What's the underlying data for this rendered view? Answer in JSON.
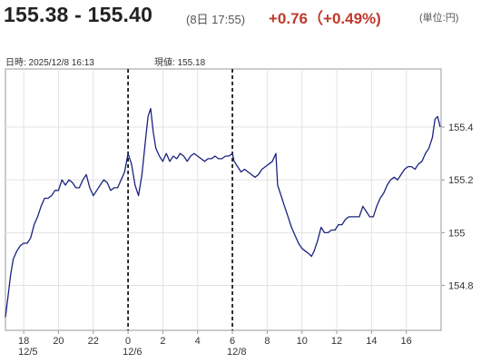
{
  "header": {
    "price_range": "155.38 - 155.40",
    "timestamp": "(8日 17:55)",
    "change": "+0.76（+0.49%)",
    "unit": "(単位:円)",
    "change_color": "#c0392b"
  },
  "info_bar": {
    "datetime_label": "日時: 2025/12/8  16:13",
    "current_label": "現値: 155.18"
  },
  "chart_data": {
    "type": "line",
    "x_unit": "hour",
    "x_range": [
      16.95,
      42.0
    ],
    "ylim": [
      154.63,
      155.62
    ],
    "y_ticks": [
      154.8,
      155,
      155.2,
      155.4
    ],
    "y_tick_labels": [
      "154.8",
      "155",
      "155.2",
      "155.4"
    ],
    "x_ticks": [
      {
        "x": 18,
        "label": "18",
        "date": "12/5"
      },
      {
        "x": 20,
        "label": "20"
      },
      {
        "x": 22,
        "label": "22"
      },
      {
        "x": 24,
        "label": "0",
        "date": "12/6"
      },
      {
        "x": 26,
        "label": "2"
      },
      {
        "x": 28,
        "label": "4"
      },
      {
        "x": 30,
        "label": "6",
        "date": "12/8"
      },
      {
        "x": 32,
        "label": "8"
      },
      {
        "x": 34,
        "label": "10"
      },
      {
        "x": 36,
        "label": "12"
      },
      {
        "x": 38,
        "label": "14"
      },
      {
        "x": 40,
        "label": "16"
      }
    ],
    "separators": [
      24,
      30
    ],
    "grid": true,
    "line_color": "#1a237e",
    "points": [
      [
        16.95,
        154.68
      ],
      [
        17.1,
        154.76
      ],
      [
        17.25,
        154.84
      ],
      [
        17.4,
        154.9
      ],
      [
        17.6,
        154.93
      ],
      [
        17.8,
        154.95
      ],
      [
        18.0,
        154.96
      ],
      [
        18.2,
        154.96
      ],
      [
        18.4,
        154.98
      ],
      [
        18.6,
        155.03
      ],
      [
        18.8,
        155.06
      ],
      [
        19.0,
        155.1
      ],
      [
        19.2,
        155.13
      ],
      [
        19.4,
        155.13
      ],
      [
        19.6,
        155.14
      ],
      [
        19.8,
        155.16
      ],
      [
        20.0,
        155.16
      ],
      [
        20.2,
        155.2
      ],
      [
        20.4,
        155.18
      ],
      [
        20.6,
        155.2
      ],
      [
        20.8,
        155.19
      ],
      [
        21.0,
        155.17
      ],
      [
        21.2,
        155.17
      ],
      [
        21.4,
        155.2
      ],
      [
        21.6,
        155.22
      ],
      [
        21.8,
        155.17
      ],
      [
        22.0,
        155.14
      ],
      [
        22.2,
        155.16
      ],
      [
        22.4,
        155.18
      ],
      [
        22.6,
        155.2
      ],
      [
        22.8,
        155.19
      ],
      [
        23.0,
        155.16
      ],
      [
        23.2,
        155.17
      ],
      [
        23.4,
        155.17
      ],
      [
        23.6,
        155.2
      ],
      [
        23.8,
        155.23
      ],
      [
        24.0,
        155.3
      ],
      [
        24.2,
        155.26
      ],
      [
        24.4,
        155.18
      ],
      [
        24.6,
        155.14
      ],
      [
        24.8,
        155.22
      ],
      [
        25.0,
        155.35
      ],
      [
        25.15,
        155.44
      ],
      [
        25.3,
        155.47
      ],
      [
        25.45,
        155.38
      ],
      [
        25.6,
        155.32
      ],
      [
        25.8,
        155.29
      ],
      [
        26.0,
        155.27
      ],
      [
        26.2,
        155.3
      ],
      [
        26.4,
        155.27
      ],
      [
        26.6,
        155.29
      ],
      [
        26.8,
        155.28
      ],
      [
        27.0,
        155.3
      ],
      [
        27.2,
        155.29
      ],
      [
        27.4,
        155.27
      ],
      [
        27.6,
        155.29
      ],
      [
        27.8,
        155.3
      ],
      [
        28.0,
        155.29
      ],
      [
        28.2,
        155.28
      ],
      [
        28.4,
        155.27
      ],
      [
        28.6,
        155.28
      ],
      [
        28.8,
        155.28
      ],
      [
        29.0,
        155.29
      ],
      [
        29.2,
        155.28
      ],
      [
        29.4,
        155.28
      ],
      [
        29.6,
        155.29
      ],
      [
        29.8,
        155.29
      ],
      [
        30.0,
        155.3
      ],
      [
        30.1,
        155.27
      ],
      [
        30.3,
        155.25
      ],
      [
        30.5,
        155.23
      ],
      [
        30.7,
        155.24
      ],
      [
        30.9,
        155.23
      ],
      [
        31.1,
        155.22
      ],
      [
        31.3,
        155.21
      ],
      [
        31.5,
        155.22
      ],
      [
        31.7,
        155.24
      ],
      [
        31.9,
        155.25
      ],
      [
        32.1,
        155.26
      ],
      [
        32.3,
        155.27
      ],
      [
        32.5,
        155.3
      ],
      [
        32.6,
        155.18
      ],
      [
        32.8,
        155.14
      ],
      [
        33.0,
        155.1
      ],
      [
        33.2,
        155.06
      ],
      [
        33.4,
        155.02
      ],
      [
        33.6,
        154.99
      ],
      [
        33.8,
        154.96
      ],
      [
        34.0,
        154.94
      ],
      [
        34.2,
        154.93
      ],
      [
        34.4,
        154.92
      ],
      [
        34.55,
        154.91
      ],
      [
        34.7,
        154.93
      ],
      [
        34.9,
        154.97
      ],
      [
        35.1,
        155.02
      ],
      [
        35.3,
        155.0
      ],
      [
        35.5,
        155.0
      ],
      [
        35.7,
        155.01
      ],
      [
        35.9,
        155.01
      ],
      [
        36.1,
        155.03
      ],
      [
        36.3,
        155.03
      ],
      [
        36.5,
        155.05
      ],
      [
        36.7,
        155.06
      ],
      [
        36.9,
        155.06
      ],
      [
        37.1,
        155.06
      ],
      [
        37.3,
        155.06
      ],
      [
        37.5,
        155.1
      ],
      [
        37.7,
        155.08
      ],
      [
        37.9,
        155.06
      ],
      [
        38.1,
        155.06
      ],
      [
        38.3,
        155.1
      ],
      [
        38.5,
        155.13
      ],
      [
        38.7,
        155.15
      ],
      [
        38.9,
        155.18
      ],
      [
        39.1,
        155.2
      ],
      [
        39.3,
        155.21
      ],
      [
        39.5,
        155.2
      ],
      [
        39.7,
        155.22
      ],
      [
        39.9,
        155.24
      ],
      [
        40.1,
        155.25
      ],
      [
        40.3,
        155.25
      ],
      [
        40.5,
        155.24
      ],
      [
        40.7,
        155.26
      ],
      [
        40.9,
        155.27
      ],
      [
        41.1,
        155.3
      ],
      [
        41.3,
        155.32
      ],
      [
        41.5,
        155.36
      ],
      [
        41.65,
        155.43
      ],
      [
        41.8,
        155.44
      ],
      [
        41.95,
        155.4
      ]
    ]
  }
}
